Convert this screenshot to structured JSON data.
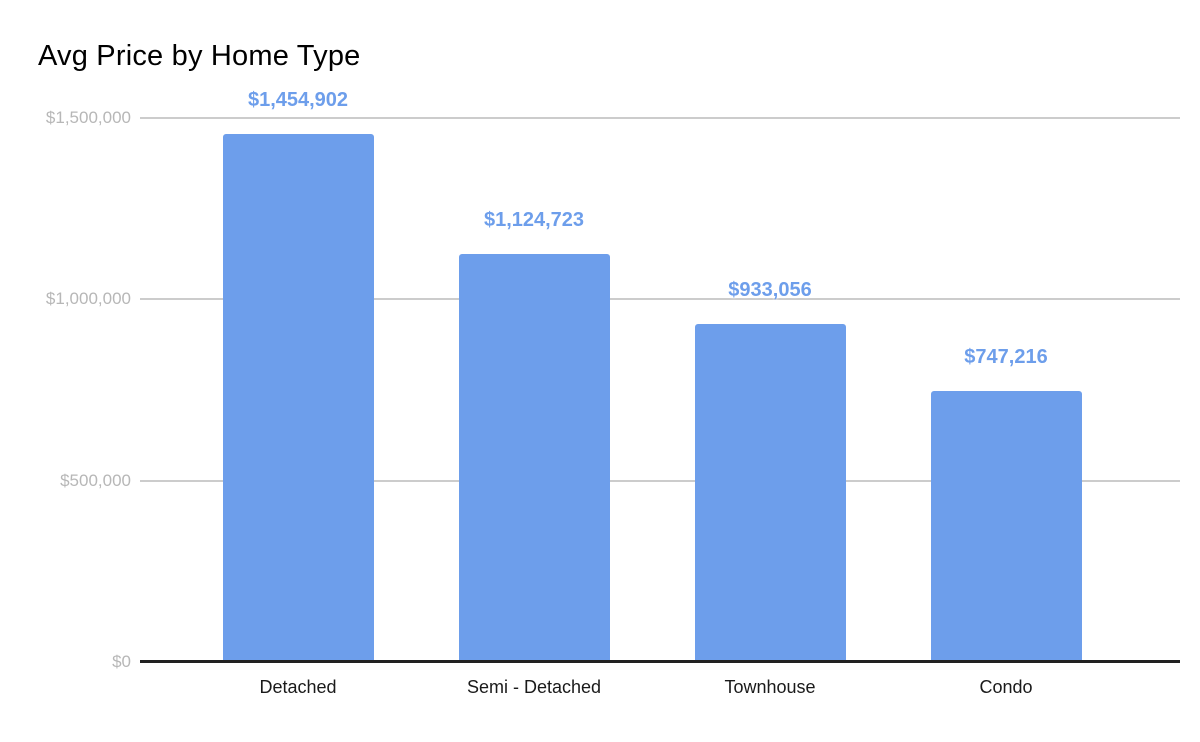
{
  "chart_data": {
    "type": "bar",
    "title": "Avg Price by Home Type",
    "categories": [
      "Detached",
      "Semi - Detached",
      "Townhouse",
      "Condo"
    ],
    "values": [
      1454902,
      1124723,
      933056,
      747216
    ],
    "value_labels": [
      "$1,454,902",
      "$1,124,723",
      "$933,056",
      "$747,216"
    ],
    "xlabel": "",
    "ylabel": "",
    "ylim": [
      0,
      1500000
    ],
    "yticks": [
      0,
      500000,
      1000000,
      1500000
    ],
    "ytick_labels": [
      "$0",
      "$500,000",
      "$1,000,000",
      "$1,500,000"
    ],
    "grid": true,
    "legend": "none",
    "colors": {
      "bar": "#6d9eeb",
      "value_label": "#6d9eeb",
      "gridline": "#cccccc",
      "axis_line": "#212121",
      "ytick_text": "#b7b7b7",
      "xtick_text": "#1a1a1a",
      "title_text": "#000000",
      "background": "#ffffff"
    }
  }
}
